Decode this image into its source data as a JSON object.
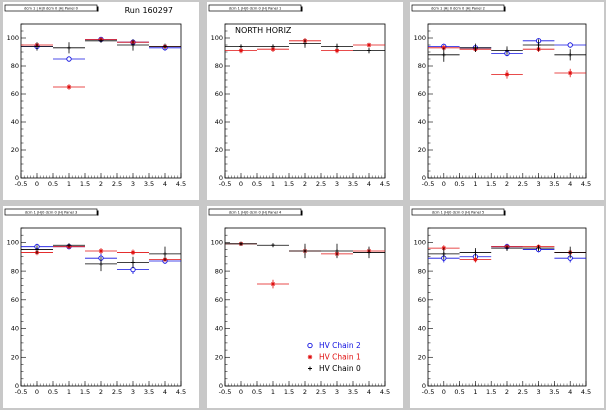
{
  "run_label": "Run 160297",
  "colors": {
    "chain2": "#1010e0",
    "chain1": "#e01010",
    "chain0": "#000000",
    "canvas": "#c8c8c8"
  },
  "legend": [
    {
      "key": "chain2",
      "label": "HV Chain 2",
      "marker": "open-circle"
    },
    {
      "key": "chain1",
      "label": "HV Chain 1",
      "marker": "star"
    },
    {
      "key": "chain0",
      "label": "HV Chain 0",
      "marker": "cross"
    }
  ],
  "chart_data": [
    {
      "type": "scatter",
      "title": "dcm 1 | H|0 dcm 0 |H| Panel 0",
      "xlim": [
        -0.5,
        4.5
      ],
      "ylim": [
        0,
        110
      ],
      "xticks": [
        "-0.5",
        "0",
        "0.5",
        "1",
        "1.5",
        "2",
        "2.5",
        "3",
        "3.5",
        "4",
        "4.5"
      ],
      "yticks": [
        "0",
        "20",
        "40",
        "60",
        "80",
        "100"
      ],
      "annotation": "",
      "series": [
        {
          "name": "HV Chain 2",
          "x": [
            0,
            1,
            2,
            3,
            4
          ],
          "y": [
            94,
            85,
            99,
            97,
            93
          ],
          "yerr": [
            2,
            2,
            1,
            2,
            2
          ]
        },
        {
          "name": "HV Chain 1",
          "x": [
            0,
            1,
            2,
            3,
            4
          ],
          "y": [
            95,
            65,
            99,
            97,
            94
          ],
          "yerr": [
            1,
            2,
            1,
            1,
            1
          ]
        },
        {
          "name": "HV Chain 0",
          "x": [
            0,
            1,
            2,
            3,
            4
          ],
          "y": [
            94,
            93,
            98,
            95,
            94
          ],
          "yerr": [
            3,
            4,
            1,
            4,
            2
          ]
        }
      ]
    },
    {
      "type": "scatter",
      "title": "dcm 1 |H|0 dcm 0 |H| Panel 1",
      "xlim": [
        -0.5,
        4.5
      ],
      "ylim": [
        0,
        110
      ],
      "xticks": [
        "-0.5",
        "0",
        "0.5",
        "1",
        "1.5",
        "2",
        "2.5",
        "3",
        "3.5",
        "4",
        "4.5"
      ],
      "yticks": [
        "0",
        "20",
        "40",
        "60",
        "80",
        "100"
      ],
      "annotation": "NORTH HORIZ",
      "series": [
        {
          "name": "HV Chain 1",
          "x": [
            0,
            1,
            2,
            3,
            4
          ],
          "y": [
            91,
            92,
            98,
            91,
            95
          ],
          "yerr": [
            2,
            2,
            2,
            2,
            1
          ]
        },
        {
          "name": "HV Chain 0",
          "x": [
            0,
            1,
            2,
            3,
            4
          ],
          "y": [
            94,
            94,
            96,
            94,
            91
          ],
          "yerr": [
            1,
            1,
            3,
            2,
            2
          ]
        }
      ]
    },
    {
      "type": "scatter",
      "title": "dcm 1 |H| 0 dcm 0 |H| Panel 2",
      "xlim": [
        -0.5,
        4.5
      ],
      "ylim": [
        0,
        110
      ],
      "xticks": [
        "-0.5",
        "0",
        "0.5",
        "1",
        "1.5",
        "2",
        "2.5",
        "3",
        "3.5",
        "4",
        "4.5"
      ],
      "yticks": [
        "0",
        "20",
        "40",
        "60",
        "80",
        "100"
      ],
      "annotation": "",
      "series": [
        {
          "name": "HV Chain 2",
          "x": [
            0,
            1,
            2,
            3,
            4
          ],
          "y": [
            94,
            93,
            89,
            98,
            95
          ],
          "yerr": [
            2,
            2,
            2,
            1,
            2
          ]
        },
        {
          "name": "HV Chain 1",
          "x": [
            0,
            1,
            2,
            3,
            4
          ],
          "y": [
            93,
            92,
            74,
            92,
            75
          ],
          "yerr": [
            2,
            2,
            3,
            2,
            3
          ]
        },
        {
          "name": "HV Chain 0",
          "x": [
            0,
            1,
            2,
            3,
            4
          ],
          "y": [
            88,
            93,
            91,
            95,
            88
          ],
          "yerr": [
            5,
            3,
            3,
            4,
            4
          ]
        }
      ]
    },
    {
      "type": "scatter",
      "title": "dcm 1 |H|0 dcm 0 |H| Panel 3",
      "xlim": [
        -0.5,
        4.5
      ],
      "ylim": [
        0,
        110
      ],
      "xticks": [
        "-0.5",
        "0",
        "0.5",
        "1",
        "1.5",
        "2",
        "2.5",
        "3",
        "3.5",
        "4",
        "4.5"
      ],
      "yticks": [
        "0",
        "20",
        "40",
        "60",
        "80",
        "100"
      ],
      "annotation": "",
      "series": [
        {
          "name": "HV Chain 2",
          "x": [
            0,
            1,
            2,
            3,
            4
          ],
          "y": [
            97,
            97,
            89,
            81,
            87
          ],
          "yerr": [
            2,
            1,
            4,
            3,
            2
          ]
        },
        {
          "name": "HV Chain 1",
          "x": [
            0,
            1,
            2,
            3,
            4
          ],
          "y": [
            93,
            97,
            94,
            93,
            88
          ],
          "yerr": [
            2,
            1,
            2,
            2,
            1
          ]
        },
        {
          "name": "HV Chain 0",
          "x": [
            0,
            1,
            2,
            3,
            4
          ],
          "y": [
            95,
            98,
            85,
            86,
            92
          ],
          "yerr": [
            3,
            1,
            5,
            4,
            5
          ]
        }
      ]
    },
    {
      "type": "scatter",
      "title": "dcm 1 |H|0 dcm 0 |H| Panel 4",
      "xlim": [
        -0.5,
        4.5
      ],
      "ylim": [
        0,
        110
      ],
      "xticks": [
        "-0.5",
        "0",
        "0.5",
        "1",
        "1.5",
        "2",
        "2.5",
        "3",
        "3.5",
        "4",
        "4.5"
      ],
      "yticks": [
        "0",
        "20",
        "40",
        "60",
        "80",
        "100"
      ],
      "annotation": "",
      "series": [
        {
          "name": "HV Chain 1",
          "x": [
            0,
            1,
            2,
            3,
            4
          ],
          "y": [
            99,
            71,
            94,
            92,
            94
          ],
          "yerr": [
            1,
            3,
            3,
            2,
            2
          ]
        },
        {
          "name": "HV Chain 0",
          "x": [
            0,
            1,
            2,
            3,
            4
          ],
          "y": [
            99,
            98,
            94,
            94,
            93
          ],
          "yerr": [
            1,
            1,
            5,
            5,
            4
          ]
        }
      ]
    },
    {
      "type": "scatter",
      "title": "dcm 1 |H|0 dcm 0 |H| Panel 5",
      "xlim": [
        -0.5,
        4.5
      ],
      "ylim": [
        0,
        110
      ],
      "xticks": [
        "-0.5",
        "0",
        "0.5",
        "1",
        "1.5",
        "2",
        "2.5",
        "3",
        "3.5",
        "4",
        "4.5"
      ],
      "yticks": [
        "0",
        "20",
        "40",
        "60",
        "80",
        "100"
      ],
      "annotation": "",
      "series": [
        {
          "name": "HV Chain 2",
          "x": [
            0,
            1,
            2,
            3,
            4
          ],
          "y": [
            89,
            90,
            97,
            95,
            89
          ],
          "yerr": [
            3,
            2,
            2,
            2,
            3
          ]
        },
        {
          "name": "HV Chain 1",
          "x": [
            0,
            1,
            2,
            3,
            4
          ],
          "y": [
            96,
            88,
            97,
            97,
            93
          ],
          "yerr": [
            2,
            2,
            1,
            1,
            2
          ]
        },
        {
          "name": "HV Chain 0",
          "x": [
            0,
            1,
            2,
            3,
            4
          ],
          "y": [
            92,
            93,
            96,
            96,
            93
          ],
          "yerr": [
            4,
            3,
            2,
            2,
            4
          ]
        }
      ]
    }
  ]
}
